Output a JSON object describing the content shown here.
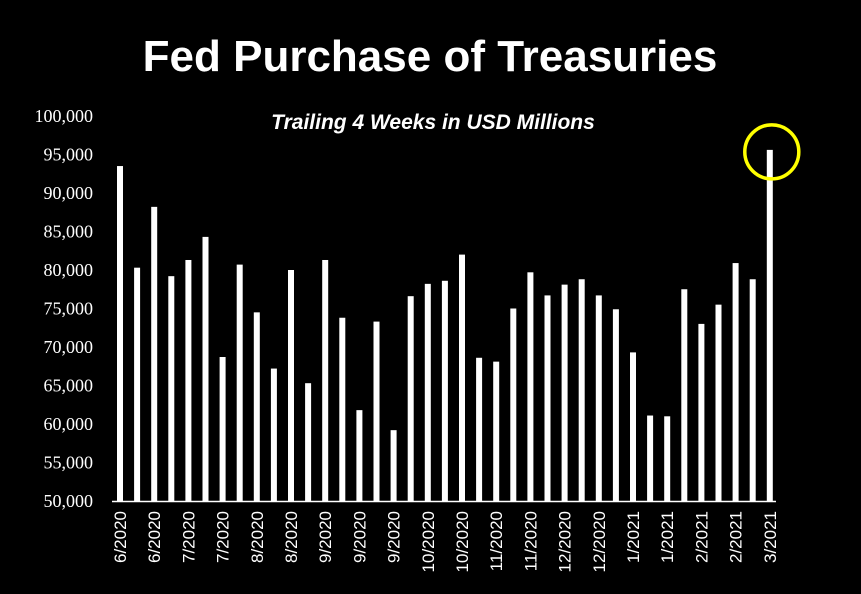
{
  "chart_data": {
    "type": "bar",
    "title": "Fed Purchase of Treasuries",
    "subtitle": "Trailing 4 Weeks in USD Millions",
    "xlabel": "",
    "ylabel": "",
    "ylim": [
      50000,
      100000
    ],
    "yticks": [
      50000,
      55000,
      60000,
      65000,
      70000,
      75000,
      80000,
      85000,
      90000,
      95000,
      100000
    ],
    "ytick_labels": [
      "50,000",
      "55,000",
      "60,000",
      "65,000",
      "70,000",
      "75,000",
      "80,000",
      "85,000",
      "90,000",
      "95,000",
      "100,000"
    ],
    "grid": false,
    "legend": "none",
    "bar_color": "#ffffff",
    "highlight_color": "#ffff00",
    "highlight_index": 38,
    "categories": [
      "6/2020",
      "6/2020",
      "6/2020",
      "6/2020",
      "7/2020",
      "7/2020",
      "7/2020",
      "7/2020",
      "8/2020",
      "8/2020",
      "8/2020",
      "8/2020",
      "9/2020",
      "9/2020",
      "9/2020",
      "9/2020",
      "10/2020",
      "10/2020",
      "10/2020",
      "10/2020",
      "10/2020",
      "11/2020",
      "11/2020",
      "11/2020",
      "11/2020",
      "12/2020",
      "12/2020",
      "12/2020",
      "12/2020",
      "12/2020",
      "1/2021",
      "1/2021",
      "1/2021",
      "1/2021",
      "2/2021",
      "2/2021",
      "2/2021",
      "2/2021",
      "3/2021"
    ],
    "tick_labels": [
      "6/2020",
      "",
      "6/2020",
      "",
      "7/2020",
      "",
      "7/2020",
      "",
      "8/2020",
      "",
      "8/2020",
      "",
      "9/2020",
      "",
      "9/2020",
      "",
      "9/2020",
      "",
      "10/2020",
      "",
      "10/2020",
      "",
      "11/2020",
      "",
      "11/2020",
      "",
      "12/2020",
      "",
      "12/2020",
      "",
      "1/2021",
      "",
      "1/2021",
      "",
      "2/2021",
      "",
      "2/2021",
      "",
      "3/2021"
    ],
    "values": [
      93500,
      80300,
      88200,
      79200,
      81300,
      84300,
      68700,
      80700,
      74500,
      67200,
      80000,
      65300,
      81300,
      73800,
      61800,
      73300,
      59200,
      76600,
      78200,
      78600,
      82000,
      68600,
      68100,
      75000,
      79700,
      76700,
      78100,
      78800,
      76700,
      74900,
      69300,
      61100,
      61000,
      77500,
      73000,
      75500,
      80900,
      78800,
      95600
    ]
  }
}
